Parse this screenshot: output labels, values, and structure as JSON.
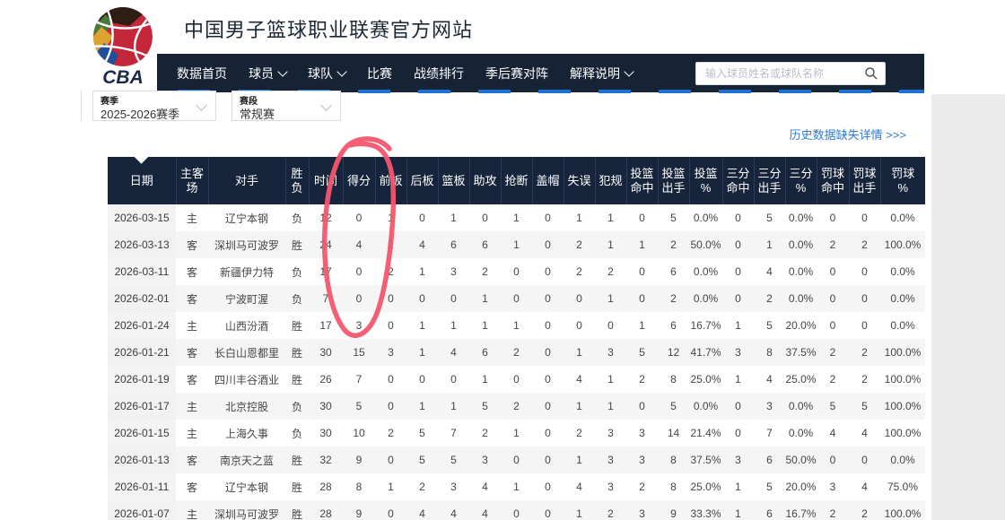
{
  "header": {
    "site_title": "中国男子篮球职业联赛官方网站",
    "logo_text": "CBA"
  },
  "nav": {
    "items": [
      {
        "label": "数据首页",
        "dropdown": false
      },
      {
        "label": "球员",
        "dropdown": true
      },
      {
        "label": "球队",
        "dropdown": true
      },
      {
        "label": "比赛",
        "dropdown": false
      },
      {
        "label": "战绩排行",
        "dropdown": false
      },
      {
        "label": "季后赛对阵",
        "dropdown": false
      },
      {
        "label": "解释说明",
        "dropdown": true
      }
    ],
    "search_placeholder": "输入球员姓名或球队名称"
  },
  "filters": {
    "season": {
      "label": "赛季",
      "value": "2025-2026赛季"
    },
    "stage": {
      "label": "赛段",
      "value": "常规赛"
    }
  },
  "history_link": "历史数据缺失详情 >>>",
  "table": {
    "columns": [
      [
        "日期"
      ],
      [
        "主客场"
      ],
      [
        "对手"
      ],
      [
        "胜负"
      ],
      [
        "时间"
      ],
      [
        "得分"
      ],
      [
        "前板"
      ],
      [
        "后板"
      ],
      [
        "篮板"
      ],
      [
        "助攻"
      ],
      [
        "抢断"
      ],
      [
        "盖帽"
      ],
      [
        "失误"
      ],
      [
        "犯规"
      ],
      [
        "投篮",
        "命中"
      ],
      [
        "投篮",
        "出手"
      ],
      [
        "投篮",
        "%"
      ],
      [
        "三分",
        "命中"
      ],
      [
        "三分",
        "出手"
      ],
      [
        "三分",
        "%"
      ],
      [
        "罚球",
        "命中"
      ],
      [
        "罚球",
        "出手"
      ],
      [
        "罚球",
        "%"
      ]
    ],
    "rows": [
      [
        "2026-03-15",
        "主",
        "辽宁本钢",
        "负",
        "12",
        "0",
        "1",
        "0",
        "1",
        "0",
        "1",
        "0",
        "1",
        "1",
        "0",
        "5",
        "0.0%",
        "0",
        "5",
        "0.0%",
        "0",
        "0",
        "0.0%"
      ],
      [
        "2026-03-13",
        "客",
        "深圳马可波罗",
        "胜",
        "24",
        "4",
        "2",
        "4",
        "6",
        "6",
        "1",
        "0",
        "2",
        "1",
        "1",
        "2",
        "50.0%",
        "0",
        "1",
        "0.0%",
        "2",
        "2",
        "100.0%"
      ],
      [
        "2026-03-11",
        "客",
        "新疆伊力特",
        "负",
        "17",
        "0",
        "2",
        "1",
        "3",
        "2",
        "0",
        "0",
        "2",
        "2",
        "0",
        "6",
        "0.0%",
        "0",
        "4",
        "0.0%",
        "0",
        "0",
        "0.0%"
      ],
      [
        "2026-02-01",
        "客",
        "宁波町渥",
        "负",
        "7",
        "0",
        "0",
        "0",
        "0",
        "1",
        "0",
        "0",
        "0",
        "1",
        "0",
        "2",
        "0.0%",
        "0",
        "2",
        "0.0%",
        "0",
        "0",
        "0.0%"
      ],
      [
        "2026-01-24",
        "主",
        "山西汾酒",
        "胜",
        "17",
        "3",
        "0",
        "1",
        "1",
        "1",
        "1",
        "0",
        "0",
        "0",
        "1",
        "6",
        "16.7%",
        "1",
        "5",
        "20.0%",
        "0",
        "0",
        "0.0%"
      ],
      [
        "2026-01-21",
        "客",
        "长白山恩都里",
        "胜",
        "30",
        "15",
        "3",
        "1",
        "4",
        "6",
        "2",
        "0",
        "1",
        "3",
        "5",
        "12",
        "41.7%",
        "3",
        "8",
        "37.5%",
        "2",
        "2",
        "100.0%"
      ],
      [
        "2026-01-19",
        "客",
        "四川丰谷酒业",
        "胜",
        "26",
        "7",
        "0",
        "0",
        "0",
        "1",
        "0",
        "0",
        "4",
        "1",
        "2",
        "8",
        "25.0%",
        "1",
        "4",
        "25.0%",
        "2",
        "2",
        "100.0%"
      ],
      [
        "2026-01-17",
        "主",
        "北京控股",
        "负",
        "30",
        "5",
        "0",
        "1",
        "1",
        "5",
        "2",
        "0",
        "1",
        "1",
        "0",
        "5",
        "0.0%",
        "0",
        "3",
        "0.0%",
        "5",
        "5",
        "100.0%"
      ],
      [
        "2026-01-15",
        "主",
        "上海久事",
        "负",
        "30",
        "10",
        "2",
        "5",
        "7",
        "2",
        "1",
        "0",
        "2",
        "3",
        "3",
        "14",
        "21.4%",
        "0",
        "7",
        "0.0%",
        "4",
        "4",
        "100.0%"
      ],
      [
        "2026-01-13",
        "客",
        "南京天之蓝",
        "胜",
        "32",
        "9",
        "0",
        "5",
        "5",
        "3",
        "0",
        "0",
        "1",
        "3",
        "3",
        "8",
        "37.5%",
        "3",
        "6",
        "50.0%",
        "0",
        "0",
        "0.0%"
      ],
      [
        "2026-01-11",
        "客",
        "辽宁本钢",
        "胜",
        "28",
        "8",
        "1",
        "2",
        "3",
        "4",
        "1",
        "0",
        "4",
        "3",
        "2",
        "8",
        "25.0%",
        "1",
        "5",
        "20.0%",
        "3",
        "4",
        "75.0%"
      ],
      [
        "2026-01-07",
        "主",
        "深圳马可波罗",
        "胜",
        "28",
        "9",
        "0",
        "4",
        "4",
        "4",
        "0",
        "0",
        "1",
        "2",
        "3",
        "9",
        "33.3%",
        "1",
        "6",
        "16.7%",
        "2",
        "2",
        "100.0%"
      ]
    ]
  },
  "annotation": {
    "type": "hand-drawn-circle",
    "target": "得分 column, top 5 rows",
    "color": "#f4566e"
  },
  "colors": {
    "nav_bg": "#152334",
    "table_header_bg": "#16253b",
    "accent_blue": "#1d71d2",
    "link_blue": "#2f7ad2",
    "zebra_gray": "#f5f5f5",
    "annotation_red": "#f4566e"
  }
}
